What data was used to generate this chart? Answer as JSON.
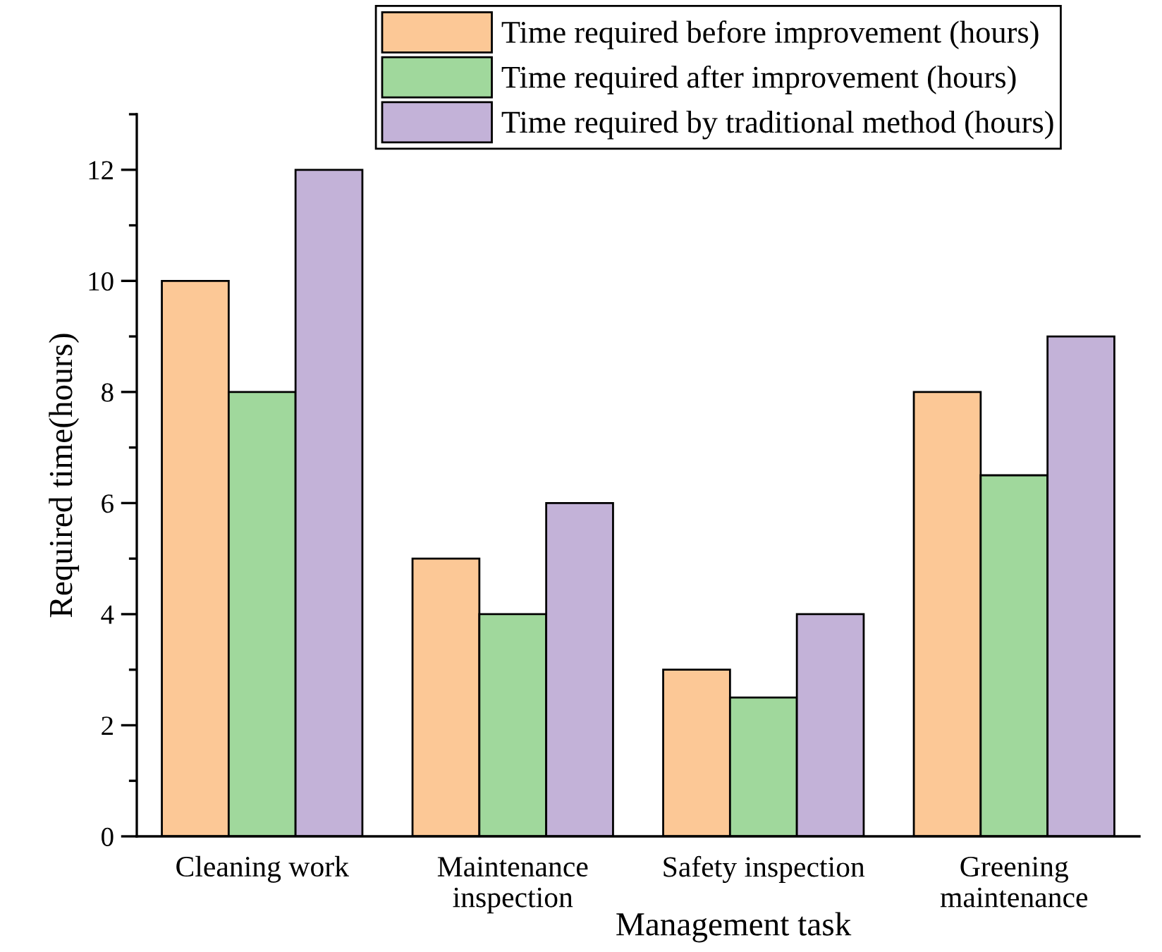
{
  "chart_data": {
    "type": "bar",
    "xlabel": "Management task",
    "ylabel": "Required time(hours)",
    "categories": [
      "Cleaning work",
      "Maintenance\ninspection",
      "Safety inspection",
      "Greening\nmaintenance"
    ],
    "series": [
      {
        "name": "Time required before improvement (hours)",
        "color": "#fcc896",
        "values": [
          10,
          5,
          3,
          8
        ]
      },
      {
        "name": "Time required after improvement (hours)",
        "color": "#a0d89c",
        "values": [
          8,
          4,
          2.5,
          6.5
        ]
      },
      {
        "name": "Time required by traditional method (hours)",
        "color": "#c3b2d8",
        "values": [
          12,
          6,
          4,
          9
        ]
      }
    ],
    "ylim": [
      0,
      13
    ],
    "yticks": [
      0,
      2,
      4,
      6,
      8,
      10,
      12
    ],
    "grid": false,
    "legend": "top"
  }
}
